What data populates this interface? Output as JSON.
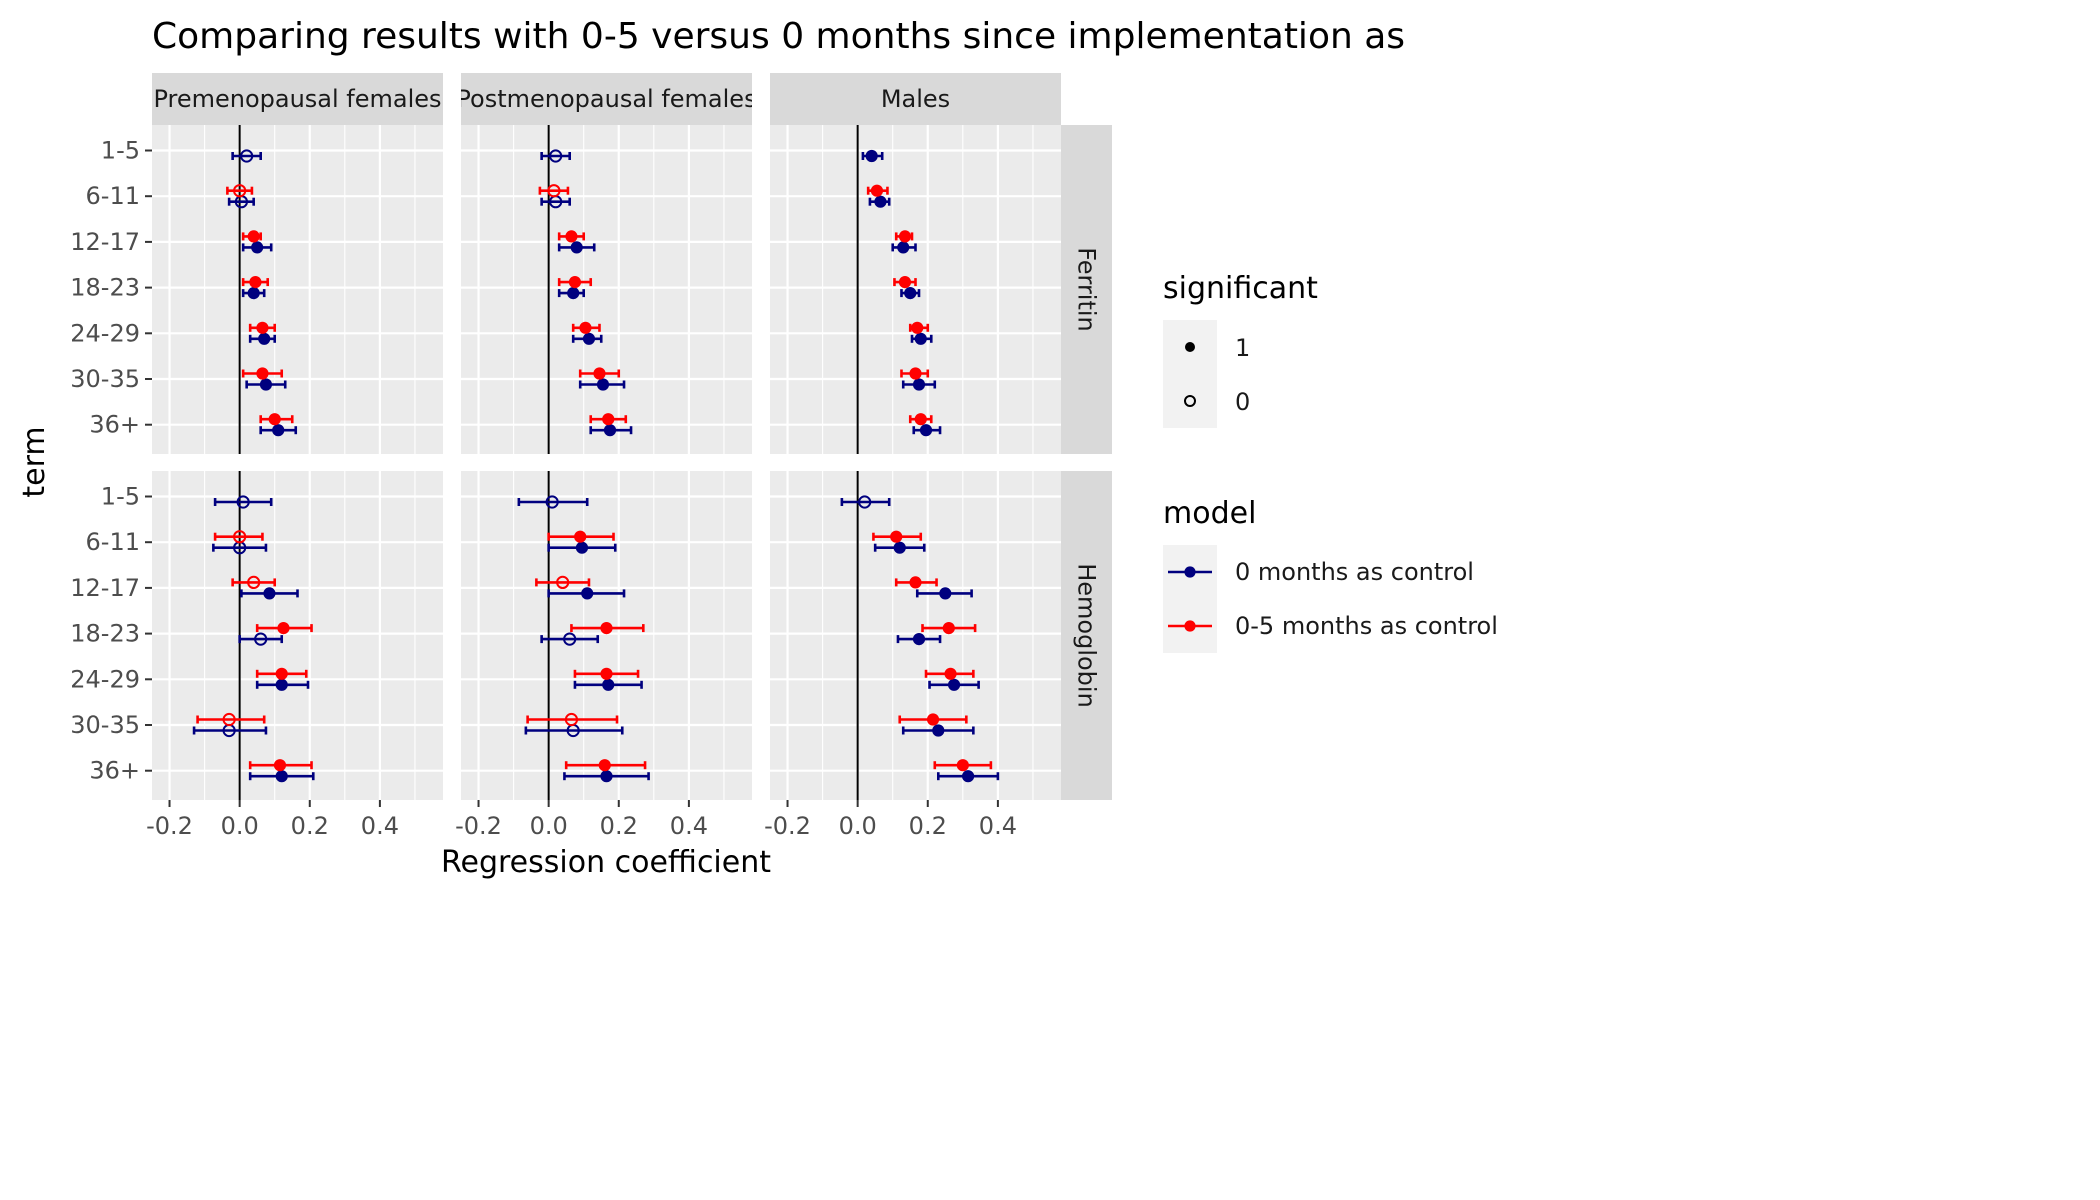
{
  "chart_data": {
    "type": "scatter",
    "title": "Comparing results with 0-5 versus 0 months since implementation as",
    "xlabel": "Regression coefficient",
    "ylabel": "term",
    "xlim": [
      -0.25,
      0.58
    ],
    "x_ticks": [
      -0.2,
      0.0,
      0.2,
      0.4
    ],
    "x_tick_labels": [
      "-0.2",
      "0.0",
      "0.2",
      "0.4"
    ],
    "terms": [
      "1-5",
      "6-11",
      "12-17",
      "18-23",
      "24-29",
      "30-35",
      "36+"
    ],
    "reference_line_x": 0,
    "column_facets": [
      "Premenopausal females",
      "Postmenopausal females",
      "Males"
    ],
    "column_facet_labels": [
      "Premenopausal females",
      "Postmenopausal females",
      "Males"
    ],
    "row_facets": [
      "Ferritin",
      "Hemoglobin"
    ],
    "legends": {
      "significant": {
        "title": "significant",
        "entries": [
          "1",
          "0"
        ]
      },
      "model": {
        "title": "model",
        "entries": [
          "0 months as control",
          "0-5 months as control"
        ]
      }
    },
    "colors": {
      "0 months as control": "#00007f",
      "0-5 months as control": "#ff0000"
    },
    "panels": [
      {
        "row": "Ferritin",
        "col": "Premenopausal females",
        "series": [
          {
            "model": "0 months as control",
            "points": [
              {
                "term": "1-5",
                "est": 0.02,
                "lo": -0.02,
                "hi": 0.06,
                "sig": 0
              },
              {
                "term": "6-11",
                "est": 0.005,
                "lo": -0.03,
                "hi": 0.04,
                "sig": 0
              },
              {
                "term": "12-17",
                "est": 0.05,
                "lo": 0.01,
                "hi": 0.09,
                "sig": 1
              },
              {
                "term": "18-23",
                "est": 0.04,
                "lo": 0.01,
                "hi": 0.07,
                "sig": 1
              },
              {
                "term": "24-29",
                "est": 0.07,
                "lo": 0.03,
                "hi": 0.1,
                "sig": 1
              },
              {
                "term": "30-35",
                "est": 0.075,
                "lo": 0.02,
                "hi": 0.13,
                "sig": 1
              },
              {
                "term": "36+",
                "est": 0.11,
                "lo": 0.06,
                "hi": 0.16,
                "sig": 1
              }
            ]
          },
          {
            "model": "0-5 months as control",
            "points": [
              {
                "term": "6-11",
                "est": 0.0,
                "lo": -0.035,
                "hi": 0.035,
                "sig": 0
              },
              {
                "term": "12-17",
                "est": 0.04,
                "lo": 0.01,
                "hi": 0.06,
                "sig": 1
              },
              {
                "term": "18-23",
                "est": 0.045,
                "lo": 0.01,
                "hi": 0.08,
                "sig": 1
              },
              {
                "term": "24-29",
                "est": 0.065,
                "lo": 0.03,
                "hi": 0.1,
                "sig": 1
              },
              {
                "term": "30-35",
                "est": 0.065,
                "lo": 0.01,
                "hi": 0.12,
                "sig": 1
              },
              {
                "term": "36+",
                "est": 0.1,
                "lo": 0.06,
                "hi": 0.15,
                "sig": 1
              }
            ]
          }
        ]
      },
      {
        "row": "Ferritin",
        "col": "Postmenopausal females",
        "series": [
          {
            "model": "0 months as control",
            "points": [
              {
                "term": "1-5",
                "est": 0.02,
                "lo": -0.02,
                "hi": 0.06,
                "sig": 0
              },
              {
                "term": "6-11",
                "est": 0.02,
                "lo": -0.02,
                "hi": 0.06,
                "sig": 0
              },
              {
                "term": "12-17",
                "est": 0.08,
                "lo": 0.03,
                "hi": 0.13,
                "sig": 1
              },
              {
                "term": "18-23",
                "est": 0.07,
                "lo": 0.03,
                "hi": 0.1,
                "sig": 1
              },
              {
                "term": "24-29",
                "est": 0.115,
                "lo": 0.07,
                "hi": 0.15,
                "sig": 1
              },
              {
                "term": "30-35",
                "est": 0.155,
                "lo": 0.09,
                "hi": 0.215,
                "sig": 1
              },
              {
                "term": "36+",
                "est": 0.175,
                "lo": 0.12,
                "hi": 0.235,
                "sig": 1
              }
            ]
          },
          {
            "model": "0-5 months as control",
            "points": [
              {
                "term": "6-11",
                "est": 0.015,
                "lo": -0.025,
                "hi": 0.055,
                "sig": 0
              },
              {
                "term": "12-17",
                "est": 0.065,
                "lo": 0.03,
                "hi": 0.1,
                "sig": 1
              },
              {
                "term": "18-23",
                "est": 0.075,
                "lo": 0.03,
                "hi": 0.12,
                "sig": 1
              },
              {
                "term": "24-29",
                "est": 0.105,
                "lo": 0.07,
                "hi": 0.145,
                "sig": 1
              },
              {
                "term": "30-35",
                "est": 0.145,
                "lo": 0.09,
                "hi": 0.2,
                "sig": 1
              },
              {
                "term": "36+",
                "est": 0.17,
                "lo": 0.12,
                "hi": 0.22,
                "sig": 1
              }
            ]
          }
        ]
      },
      {
        "row": "Ferritin",
        "col": "Males",
        "series": [
          {
            "model": "0 months as control",
            "points": [
              {
                "term": "1-5",
                "est": 0.04,
                "lo": 0.015,
                "hi": 0.07,
                "sig": 1
              },
              {
                "term": "6-11",
                "est": 0.065,
                "lo": 0.035,
                "hi": 0.09,
                "sig": 1
              },
              {
                "term": "12-17",
                "est": 0.13,
                "lo": 0.1,
                "hi": 0.165,
                "sig": 1
              },
              {
                "term": "18-23",
                "est": 0.15,
                "lo": 0.125,
                "hi": 0.175,
                "sig": 1
              },
              {
                "term": "24-29",
                "est": 0.18,
                "lo": 0.155,
                "hi": 0.21,
                "sig": 1
              },
              {
                "term": "30-35",
                "est": 0.175,
                "lo": 0.13,
                "hi": 0.22,
                "sig": 1
              },
              {
                "term": "36+",
                "est": 0.195,
                "lo": 0.16,
                "hi": 0.235,
                "sig": 1
              }
            ]
          },
          {
            "model": "0-5 months as control",
            "points": [
              {
                "term": "6-11",
                "est": 0.055,
                "lo": 0.03,
                "hi": 0.085,
                "sig": 1
              },
              {
                "term": "12-17",
                "est": 0.135,
                "lo": 0.11,
                "hi": 0.155,
                "sig": 1
              },
              {
                "term": "18-23",
                "est": 0.135,
                "lo": 0.105,
                "hi": 0.165,
                "sig": 1
              },
              {
                "term": "24-29",
                "est": 0.17,
                "lo": 0.15,
                "hi": 0.2,
                "sig": 1
              },
              {
                "term": "30-35",
                "est": 0.165,
                "lo": 0.125,
                "hi": 0.2,
                "sig": 1
              },
              {
                "term": "36+",
                "est": 0.18,
                "lo": 0.15,
                "hi": 0.21,
                "sig": 1
              }
            ]
          }
        ]
      },
      {
        "row": "Hemoglobin",
        "col": "Premenopausal females",
        "series": [
          {
            "model": "0 months as control",
            "points": [
              {
                "term": "1-5",
                "est": 0.01,
                "lo": -0.07,
                "hi": 0.09,
                "sig": 0
              },
              {
                "term": "6-11",
                "est": 0.0,
                "lo": -0.075,
                "hi": 0.075,
                "sig": 0
              },
              {
                "term": "12-17",
                "est": 0.085,
                "lo": 0.005,
                "hi": 0.165,
                "sig": 1
              },
              {
                "term": "18-23",
                "est": 0.06,
                "lo": 0.0,
                "hi": 0.12,
                "sig": 0
              },
              {
                "term": "24-29",
                "est": 0.12,
                "lo": 0.05,
                "hi": 0.195,
                "sig": 1
              },
              {
                "term": "30-35",
                "est": -0.03,
                "lo": -0.13,
                "hi": 0.075,
                "sig": 0
              },
              {
                "term": "36+",
                "est": 0.12,
                "lo": 0.03,
                "hi": 0.21,
                "sig": 1
              }
            ]
          },
          {
            "model": "0-5 months as control",
            "points": [
              {
                "term": "6-11",
                "est": 0.0,
                "lo": -0.07,
                "hi": 0.065,
                "sig": 0
              },
              {
                "term": "12-17",
                "est": 0.04,
                "lo": -0.02,
                "hi": 0.1,
                "sig": 0
              },
              {
                "term": "18-23",
                "est": 0.125,
                "lo": 0.05,
                "hi": 0.205,
                "sig": 1
              },
              {
                "term": "24-29",
                "est": 0.12,
                "lo": 0.05,
                "hi": 0.19,
                "sig": 1
              },
              {
                "term": "30-35",
                "est": -0.03,
                "lo": -0.12,
                "hi": 0.07,
                "sig": 0
              },
              {
                "term": "36+",
                "est": 0.115,
                "lo": 0.03,
                "hi": 0.205,
                "sig": 1
              }
            ]
          }
        ]
      },
      {
        "row": "Hemoglobin",
        "col": "Postmenopausal females",
        "series": [
          {
            "model": "0 months as control",
            "points": [
              {
                "term": "1-5",
                "est": 0.01,
                "lo": -0.085,
                "hi": 0.11,
                "sig": 0
              },
              {
                "term": "6-11",
                "est": 0.095,
                "lo": 0.0,
                "hi": 0.19,
                "sig": 1
              },
              {
                "term": "12-17",
                "est": 0.11,
                "lo": 0.0,
                "hi": 0.215,
                "sig": 1
              },
              {
                "term": "18-23",
                "est": 0.06,
                "lo": -0.02,
                "hi": 0.14,
                "sig": 0
              },
              {
                "term": "24-29",
                "est": 0.17,
                "lo": 0.075,
                "hi": 0.265,
                "sig": 1
              },
              {
                "term": "30-35",
                "est": 0.07,
                "lo": -0.065,
                "hi": 0.21,
                "sig": 0
              },
              {
                "term": "36+",
                "est": 0.165,
                "lo": 0.045,
                "hi": 0.285,
                "sig": 1
              }
            ]
          },
          {
            "model": "0-5 months as control",
            "points": [
              {
                "term": "6-11",
                "est": 0.09,
                "lo": 0.0,
                "hi": 0.185,
                "sig": 1
              },
              {
                "term": "12-17",
                "est": 0.04,
                "lo": -0.035,
                "hi": 0.115,
                "sig": 0
              },
              {
                "term": "18-23",
                "est": 0.165,
                "lo": 0.065,
                "hi": 0.27,
                "sig": 1
              },
              {
                "term": "24-29",
                "est": 0.165,
                "lo": 0.075,
                "hi": 0.255,
                "sig": 1
              },
              {
                "term": "30-35",
                "est": 0.065,
                "lo": -0.06,
                "hi": 0.195,
                "sig": 0
              },
              {
                "term": "36+",
                "est": 0.16,
                "lo": 0.05,
                "hi": 0.275,
                "sig": 1
              }
            ]
          }
        ]
      },
      {
        "row": "Hemoglobin",
        "col": "Males",
        "series": [
          {
            "model": "0 months as control",
            "points": [
              {
                "term": "1-5",
                "est": 0.02,
                "lo": -0.045,
                "hi": 0.09,
                "sig": 0
              },
              {
                "term": "6-11",
                "est": 0.12,
                "lo": 0.05,
                "hi": 0.19,
                "sig": 1
              },
              {
                "term": "12-17",
                "est": 0.25,
                "lo": 0.17,
                "hi": 0.325,
                "sig": 1
              },
              {
                "term": "18-23",
                "est": 0.175,
                "lo": 0.115,
                "hi": 0.235,
                "sig": 1
              },
              {
                "term": "24-29",
                "est": 0.275,
                "lo": 0.205,
                "hi": 0.345,
                "sig": 1
              },
              {
                "term": "30-35",
                "est": 0.23,
                "lo": 0.13,
                "hi": 0.33,
                "sig": 1
              },
              {
                "term": "36+",
                "est": 0.315,
                "lo": 0.23,
                "hi": 0.4,
                "sig": 1
              }
            ]
          },
          {
            "model": "0-5 months as control",
            "points": [
              {
                "term": "6-11",
                "est": 0.11,
                "lo": 0.045,
                "hi": 0.18,
                "sig": 1
              },
              {
                "term": "12-17",
                "est": 0.165,
                "lo": 0.11,
                "hi": 0.225,
                "sig": 1
              },
              {
                "term": "18-23",
                "est": 0.26,
                "lo": 0.185,
                "hi": 0.335,
                "sig": 1
              },
              {
                "term": "24-29",
                "est": 0.265,
                "lo": 0.195,
                "hi": 0.33,
                "sig": 1
              },
              {
                "term": "30-35",
                "est": 0.215,
                "lo": 0.12,
                "hi": 0.31,
                "sig": 1
              },
              {
                "term": "36+",
                "est": 0.3,
                "lo": 0.22,
                "hi": 0.38,
                "sig": 1
              }
            ]
          }
        ]
      }
    ]
  }
}
